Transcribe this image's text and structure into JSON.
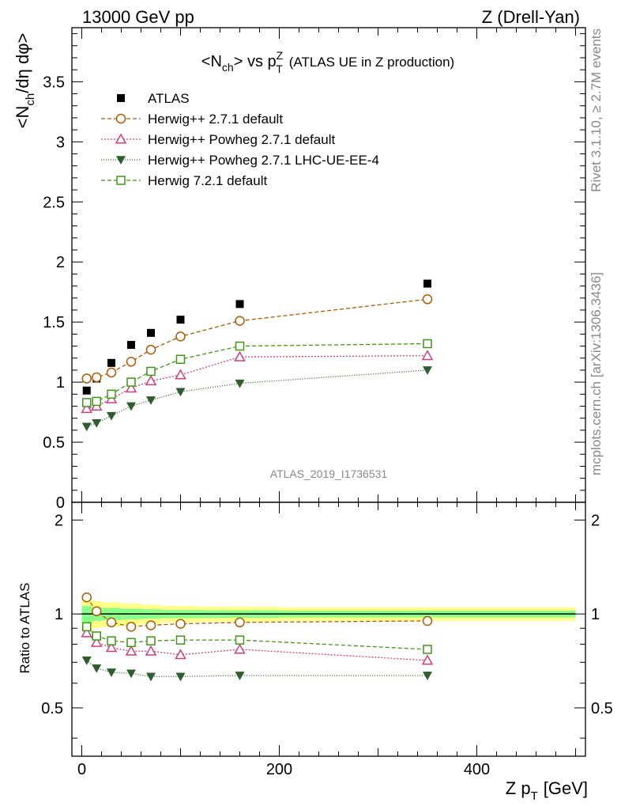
{
  "header": {
    "left": "13000 GeV pp",
    "right": "Z (Drell-Yan)"
  },
  "side": {
    "rivet": "Rivet 3.1.10, ≥ 2.7M events",
    "mcplots": "mcplots.cern.ch [arXiv:1306.3436]"
  },
  "chart_data": {
    "type": "scatter",
    "title_prefix": "<N",
    "title_ch": "ch",
    "title_vs": "> vs p",
    "title_sup": "Z",
    "title_sub": "T",
    "title_note": "(ATLAS UE in Z production)",
    "analysis_id": "ATLAS_2019_I1736531",
    "ylabel": "<Nch/dη dφ>",
    "ylabel_main": "<N",
    "ylabel_ch": "ch",
    "ylabel_rest": "/dη dφ>",
    "ratio_ylabel": "Ratio to ATLAS",
    "xlabel_main": "Z p",
    "xlabel_sub": "T",
    "xlabel_unit": "[GeV]",
    "xlim": [
      -10,
      510
    ],
    "ylim": [
      0,
      3.95
    ],
    "ratio_ylim": [
      0.35,
      2.28
    ],
    "x_ticks": [
      0,
      200,
      400
    ],
    "y_ticks": [
      0,
      0.5,
      1,
      1.5,
      2,
      2.5,
      3,
      3.5
    ],
    "ratio_y_ticks": [
      0.5,
      1,
      2
    ],
    "x": [
      5,
      15,
      30,
      50,
      70,
      100,
      160,
      350
    ],
    "series": [
      {
        "name": "ATLAS",
        "marker": "square-filled",
        "color": "#000000",
        "values": [
          0.93,
          1.03,
          1.16,
          1.31,
          1.41,
          1.52,
          1.65,
          1.82
        ]
      },
      {
        "name": "Herwig++ 2.7.1 default",
        "marker": "circle-open",
        "color": "#b35900",
        "dash": "5,3",
        "values": [
          1.03,
          1.04,
          1.08,
          1.17,
          1.27,
          1.38,
          1.51,
          1.69
        ],
        "ratio": [
          1.13,
          1.02,
          0.94,
          0.91,
          0.92,
          0.93,
          0.94,
          0.95
        ]
      },
      {
        "name": "Herwig++ Powheg 2.7.1 default",
        "marker": "triangle-open",
        "color": "#d63b7a",
        "dash": "2,2",
        "values": [
          0.78,
          0.8,
          0.86,
          0.95,
          1.01,
          1.06,
          1.21,
          1.22
        ],
        "ratio": [
          0.87,
          0.81,
          0.78,
          0.76,
          0.76,
          0.74,
          0.77,
          0.71
        ]
      },
      {
        "name": "Herwig++ Powheg 2.7.1 LHC-UE-EE-4",
        "marker": "triangle-down-filled",
        "color": "#2e5e2e",
        "dash": "1,2",
        "values": [
          0.63,
          0.66,
          0.72,
          0.8,
          0.85,
          0.92,
          0.99,
          1.1
        ],
        "ratio": [
          0.71,
          0.67,
          0.65,
          0.645,
          0.63,
          0.63,
          0.635,
          0.635
        ]
      },
      {
        "name": "Herwig 7.2.1 default",
        "marker": "square-open",
        "color": "#3a9a10",
        "dash": "5,3",
        "values": [
          0.83,
          0.84,
          0.9,
          1.0,
          1.09,
          1.19,
          1.3,
          1.32
        ],
        "ratio": [
          0.91,
          0.85,
          0.82,
          0.81,
          0.82,
          0.825,
          0.825,
          0.77
        ]
      }
    ],
    "band": {
      "x_edges": [
        0,
        10,
        20,
        40,
        60,
        80,
        120,
        200,
        500
      ],
      "yellow_half": [
        0.12,
        0.1,
        0.09,
        0.08,
        0.07,
        0.06,
        0.055,
        0.05
      ],
      "green_half": [
        0.06,
        0.05,
        0.045,
        0.04,
        0.035,
        0.03,
        0.028,
        0.025
      ]
    }
  }
}
